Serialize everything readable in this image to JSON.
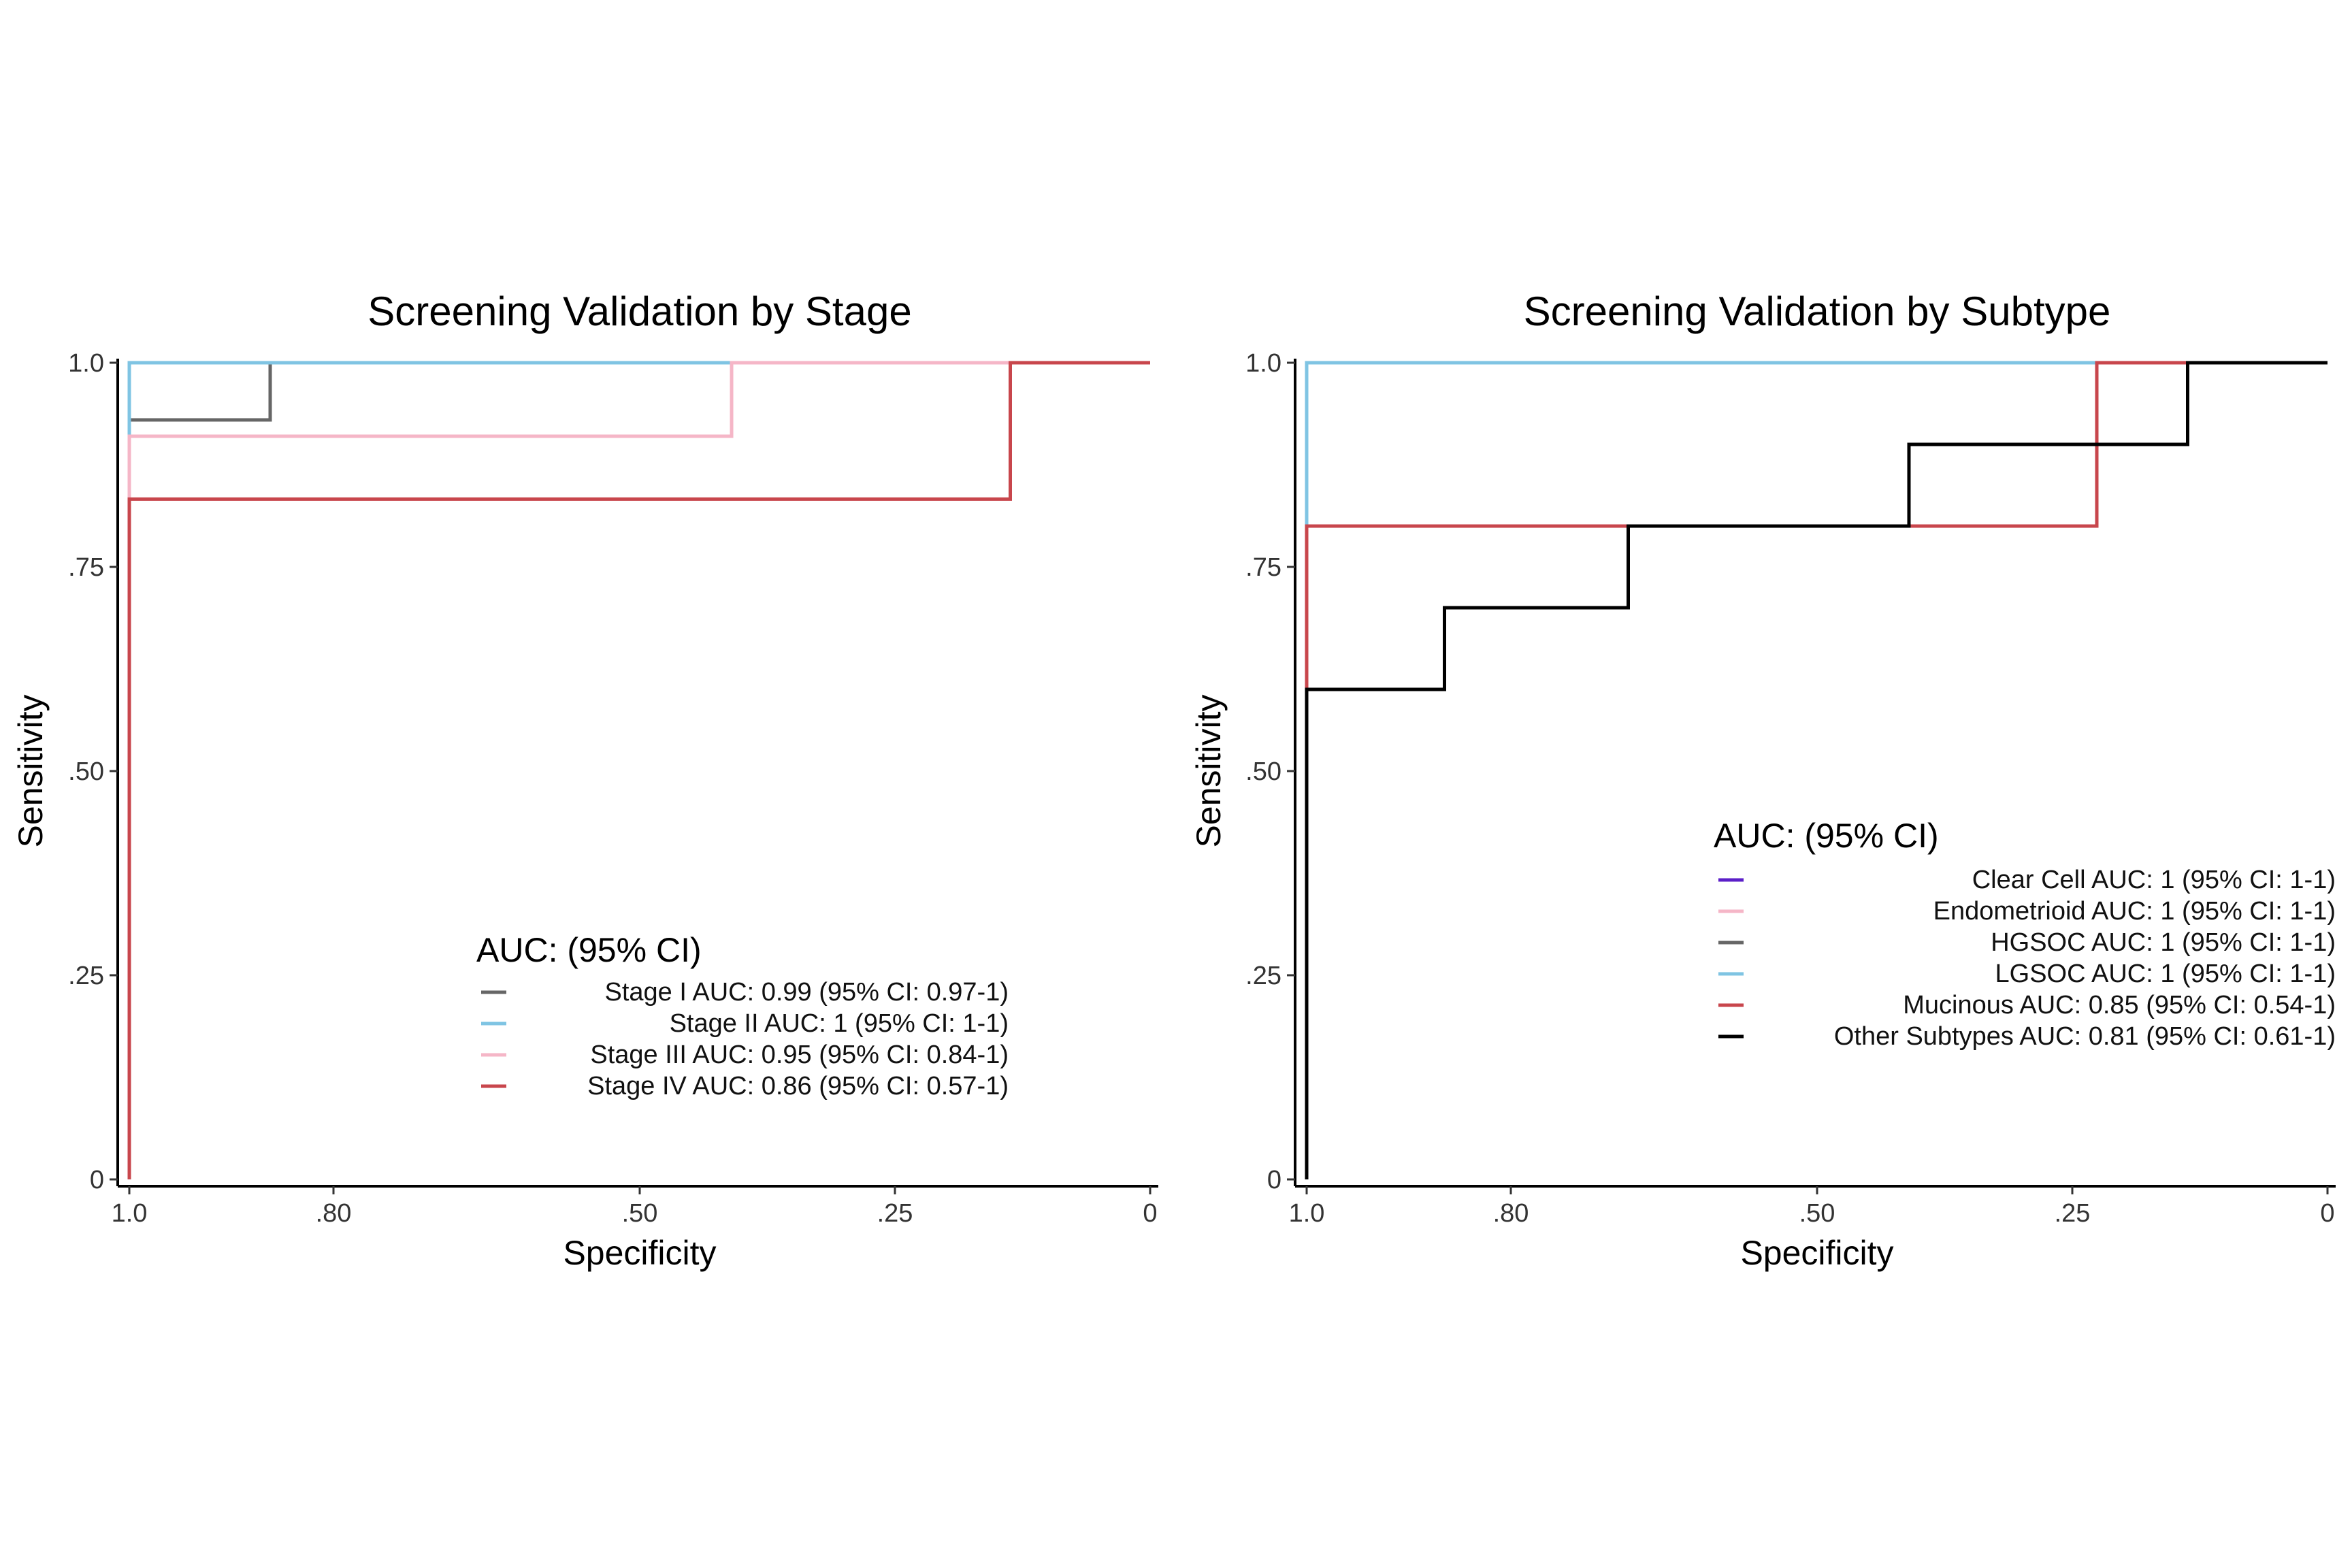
{
  "chart_data": [
    {
      "type": "line",
      "title": "Screening Validation by Stage",
      "xlabel": "Specificity",
      "ylabel": "Sensitivity",
      "x_reversed": true,
      "xlim": [
        1,
        0
      ],
      "ylim": [
        0,
        1
      ],
      "x_ticks": [
        1,
        0.8,
        0.5,
        0.25,
        0
      ],
      "x_tick_labels": [
        "1.0",
        ".80",
        ".50",
        ".25",
        "0"
      ],
      "y_ticks": [
        0,
        0.25,
        0.5,
        0.75,
        1
      ],
      "y_tick_labels": [
        "0",
        ".25",
        ".50",
        ".75",
        "1.0"
      ],
      "grid": false,
      "legend": {
        "title": "AUC: (95% CI)",
        "placement": "bottom-right"
      },
      "series": [
        {
          "name": "Stage I AUC: 0.99 (95% CI: 0.97-1)",
          "color": "#666666",
          "points": [
            [
              1,
              0
            ],
            [
              1,
              0.93
            ],
            [
              0.862,
              0.93
            ],
            [
              0.862,
              1
            ],
            [
              0,
              1
            ]
          ]
        },
        {
          "name": "Stage II AUC: 1 (95% CI: 1-1)",
          "color": "#7fc4e3",
          "points": [
            [
              1,
              0
            ],
            [
              1,
              1
            ],
            [
              0,
              1
            ]
          ]
        },
        {
          "name": "Stage III AUC: 0.95 (95% CI: 0.84-1)",
          "color": "#f5b6c7",
          "points": [
            [
              1,
              0
            ],
            [
              1,
              0.91
            ],
            [
              0.41,
              0.91
            ],
            [
              0.41,
              1
            ],
            [
              0,
              1
            ]
          ]
        },
        {
          "name": "Stage IV AUC: 0.86 (95% CI: 0.57-1)",
          "color": "#c8464c",
          "points": [
            [
              1,
              0
            ],
            [
              1,
              0.833
            ],
            [
              0.137,
              0.833
            ],
            [
              0.137,
              1
            ],
            [
              0,
              1
            ]
          ]
        }
      ]
    },
    {
      "type": "line",
      "title": "Screening Validation by Subtype",
      "xlabel": "Specificity",
      "ylabel": "Sensitivity",
      "x_reversed": true,
      "xlim": [
        1,
        0
      ],
      "ylim": [
        0,
        1
      ],
      "x_ticks": [
        1,
        0.8,
        0.5,
        0.25,
        0
      ],
      "x_tick_labels": [
        "1.0",
        ".80",
        ".50",
        ".25",
        "0"
      ],
      "y_ticks": [
        0,
        0.25,
        0.5,
        0.75,
        1
      ],
      "y_tick_labels": [
        "0",
        ".25",
        ".50",
        ".75",
        "1.0"
      ],
      "grid": false,
      "legend": {
        "title": "AUC: (95% CI)",
        "placement": "right"
      },
      "series": [
        {
          "name": "Clear Cell AUC: 1 (95% CI: 1-1)",
          "color": "#5b1fc8",
          "points": [
            [
              1,
              0
            ],
            [
              1,
              1
            ],
            [
              0,
              1
            ]
          ]
        },
        {
          "name": "Endometrioid AUC: 1 (95% CI: 1-1)",
          "color": "#f5b6c7",
          "points": [
            [
              1,
              0
            ],
            [
              1,
              1
            ],
            [
              0,
              1
            ]
          ]
        },
        {
          "name": "HGSOC AUC: 1 (95% CI: 1-1)",
          "color": "#666666",
          "points": [
            [
              1,
              0
            ],
            [
              1,
              1
            ],
            [
              0,
              1
            ]
          ]
        },
        {
          "name": "LGSOC AUC: 1 (95% CI: 1-1)",
          "color": "#7fc4e3",
          "points": [
            [
              1,
              0
            ],
            [
              1,
              1
            ],
            [
              0,
              1
            ]
          ]
        },
        {
          "name": "Mucinous AUC: 0.85 (95% CI: 0.54-1)",
          "color": "#c8464c",
          "points": [
            [
              1,
              0
            ],
            [
              1,
              0.8
            ],
            [
              0.226,
              0.8
            ],
            [
              0.226,
              1
            ],
            [
              0,
              1
            ]
          ]
        },
        {
          "name": "Other Subtypes AUC: 0.81 (95% CI: 0.61-1)",
          "color": "#000000",
          "points": [
            [
              1,
              0
            ],
            [
              1,
              0.6
            ],
            [
              0.865,
              0.6
            ],
            [
              0.865,
              0.7
            ],
            [
              0.685,
              0.7
            ],
            [
              0.685,
              0.8
            ],
            [
              0.41,
              0.8
            ],
            [
              0.41,
              0.9
            ],
            [
              0.137,
              0.9
            ],
            [
              0.137,
              1
            ],
            [
              0,
              1
            ]
          ]
        }
      ]
    }
  ]
}
